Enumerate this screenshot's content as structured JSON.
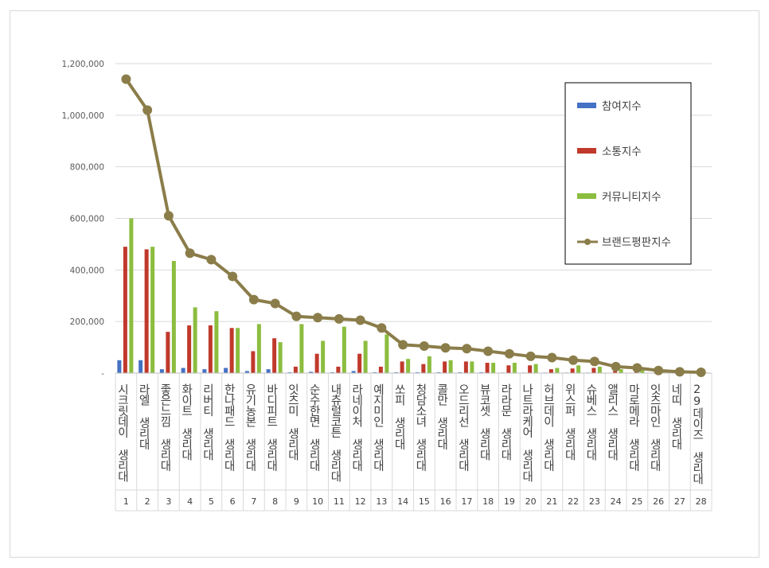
{
  "chart_data": {
    "type": "bar",
    "ylim": [
      0,
      1200000
    ],
    "y_ticks": [
      "-",
      "200,000",
      "400,000",
      "600,000",
      "800,000",
      "1,000,000",
      "1,200,000"
    ],
    "y_tick_values": [
      0,
      200000,
      400000,
      600000,
      800000,
      1000000,
      1200000
    ],
    "grid": true,
    "legend_position": "top-right",
    "ranks": [
      "1",
      "2",
      "3",
      "4",
      "5",
      "6",
      "7",
      "8",
      "9",
      "10",
      "11",
      "12",
      "13",
      "14",
      "15",
      "16",
      "17",
      "18",
      "19",
      "20",
      "21",
      "22",
      "23",
      "24",
      "25",
      "26",
      "27",
      "28"
    ],
    "categories": [
      "시크릿데이 생리대",
      "라엘 생리대",
      "좋은느낌 생리대",
      "화이트 생리대",
      "리버티 생리대",
      "한나패드 생리대",
      "유기농본 생리대",
      "바디피트 생리대",
      "잇츠미 생리대",
      "순수한면 생리대",
      "내츄럴코튼 생리대",
      "라네이처 생리대",
      "예지미인 생리대",
      "쏘피 생리대",
      "청담소녀 생리대",
      "콜만 생리대",
      "오드리선 생리대",
      "뷰코셋 생리대",
      "라라문 생리대",
      "나트라케어 생리대",
      "허브데이 생리대",
      "위스퍼 생리대",
      "슈베스 생리대",
      "앨리스 생리대",
      "마로메라 생리대",
      "잇츠마인 생리대",
      "네띠 생리대",
      "29데이즈 생리대"
    ],
    "series": [
      {
        "name": "참여지수",
        "kind": "bar",
        "color": "#4472c4",
        "values": [
          50000,
          50000,
          15000,
          20000,
          15000,
          20000,
          8000,
          15000,
          3000,
          5000,
          3000,
          8000,
          3000,
          3000,
          3000,
          3000,
          3000,
          3000,
          2000,
          2000,
          2000,
          2000,
          2000,
          1000,
          1000,
          1000,
          500,
          500
        ]
      },
      {
        "name": "소통지수",
        "kind": "bar",
        "color": "#c0392b",
        "values": [
          490000,
          480000,
          160000,
          185000,
          185000,
          175000,
          85000,
          135000,
          25000,
          75000,
          25000,
          75000,
          25000,
          45000,
          35000,
          45000,
          45000,
          40000,
          30000,
          30000,
          15000,
          18000,
          20000,
          8000,
          8000,
          5000,
          3000,
          2000
        ]
      },
      {
        "name": "커뮤니티지수",
        "kind": "bar",
        "color": "#8cbd3f",
        "values": [
          600000,
          490000,
          435000,
          255000,
          240000,
          175000,
          190000,
          120000,
          190000,
          125000,
          180000,
          125000,
          150000,
          55000,
          65000,
          50000,
          45000,
          40000,
          40000,
          35000,
          20000,
          30000,
          25000,
          15000,
          12000,
          5000,
          3000,
          2000
        ]
      },
      {
        "name": "브랜드평판지수",
        "kind": "line",
        "color": "#8b7d4a",
        "values": [
          1140000,
          1020000,
          610000,
          465000,
          440000,
          375000,
          285000,
          270000,
          220000,
          215000,
          210000,
          205000,
          175000,
          110000,
          105000,
          98000,
          95000,
          85000,
          75000,
          65000,
          60000,
          50000,
          45000,
          25000,
          20000,
          10000,
          5000,
          3000
        ]
      }
    ]
  }
}
